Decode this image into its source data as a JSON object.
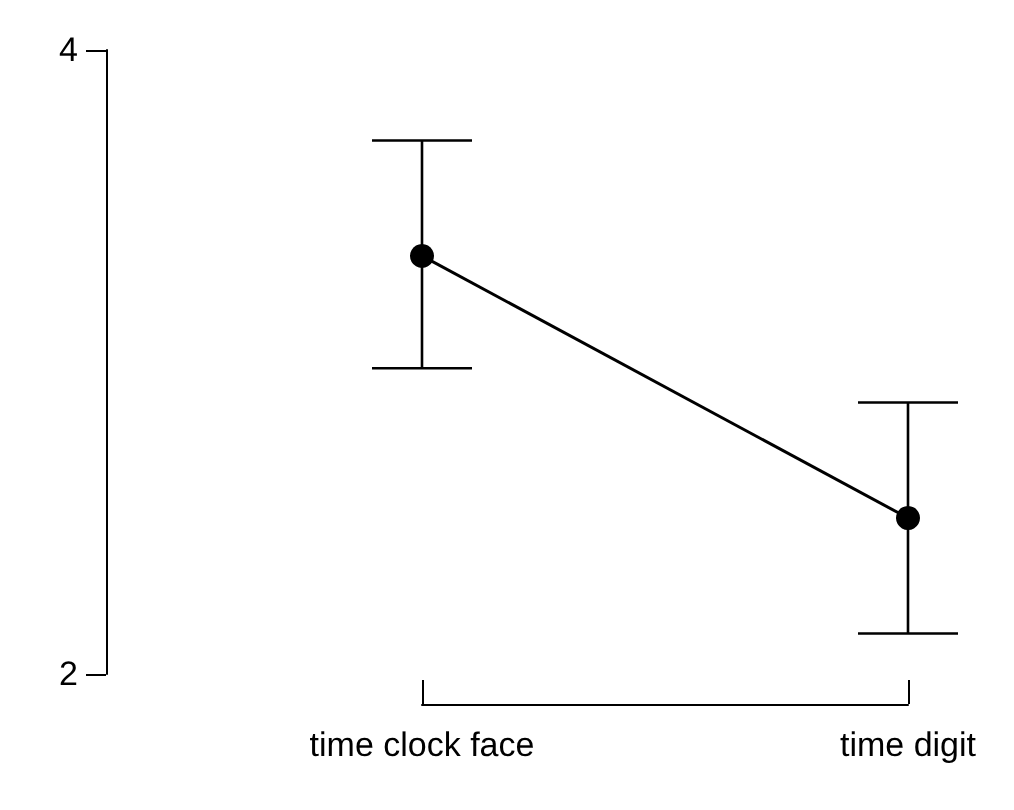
{
  "chart_data": {
    "type": "line",
    "categories": [
      "time clock face",
      "time digit"
    ],
    "series": [
      {
        "color": "#000000",
        "values": [
          3.34,
          2.5
        ],
        "errors": [
          [
            2.98,
            3.71
          ],
          [
            2.13,
            2.87
          ]
        ]
      }
    ],
    "ylim": [
      2,
      4
    ],
    "yticks": [
      2,
      4
    ],
    "grid": false,
    "marker": "circle",
    "line_style": "solid"
  }
}
